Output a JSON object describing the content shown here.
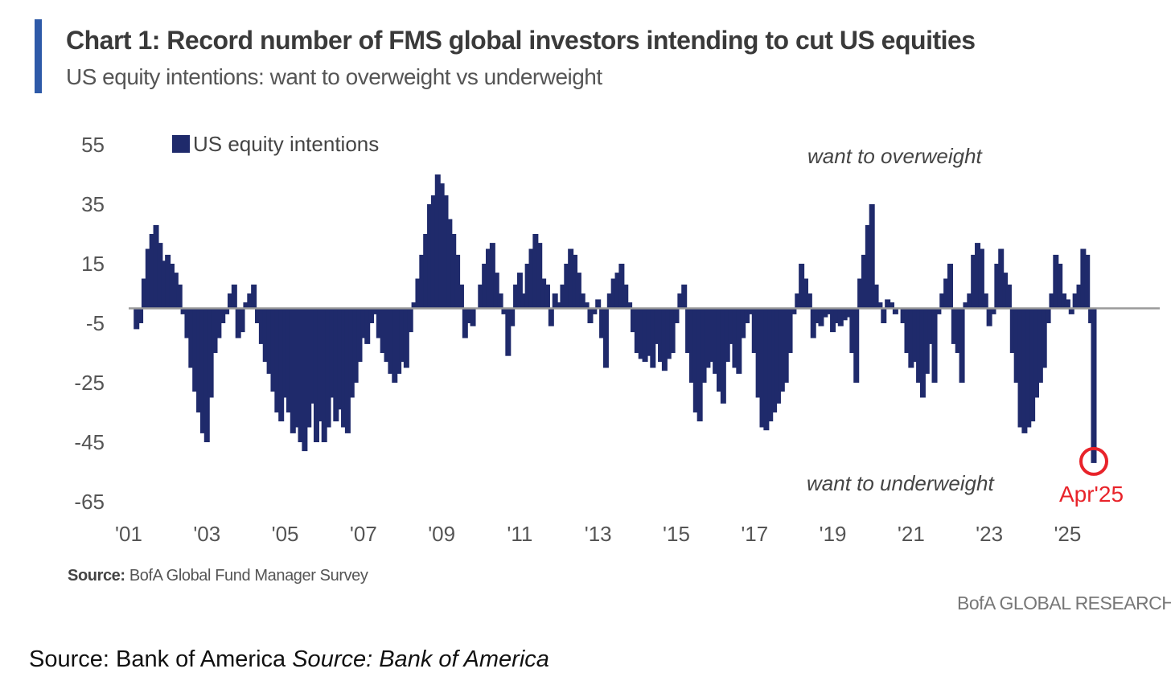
{
  "colors": {
    "bar": "#1f2a6b",
    "accent": "#2e5aa8",
    "highlight": "#e8232a",
    "zero_line": "#9a9a9a"
  },
  "header": {
    "title": "Chart 1: Record number of FMS global investors intending to cut US equities",
    "subtitle": "US equity intentions: want to overweight vs underweight"
  },
  "footer": {
    "source_label": "Source:",
    "source_text": "BofA Global Fund Manager Survey",
    "brand": "BofA GLOBAL RESEARCH",
    "outer_source_plain": "Source: Bank of America",
    "outer_source_italic": "Source: Bank of America"
  },
  "chart_data": {
    "type": "bar",
    "title": "Chart 1: Record number of FMS global investors intending to cut US equities",
    "subtitle": "US equity intentions: want to overweight vs underweight",
    "legend": {
      "label": "US equity intentions",
      "placement": "top-left"
    },
    "annotations": {
      "top": "want to overweight",
      "bottom": "want to underweight",
      "highlight_label": "Apr'25"
    },
    "ylim": [
      -65,
      55
    ],
    "yticks": [
      55,
      35,
      15,
      -5,
      -25,
      -45,
      -65
    ],
    "xlim": [
      2001,
      2025.67
    ],
    "xticks": [
      {
        "value": 2001,
        "label": "'01"
      },
      {
        "value": 2003,
        "label": "'03"
      },
      {
        "value": 2005,
        "label": "'05"
      },
      {
        "value": 2007,
        "label": "'07"
      },
      {
        "value": 2009,
        "label": "'09"
      },
      {
        "value": 2011,
        "label": "'11"
      },
      {
        "value": 2013,
        "label": "'13"
      },
      {
        "value": 2015,
        "label": "'15"
      },
      {
        "value": 2017,
        "label": "'17"
      },
      {
        "value": 2019,
        "label": "'19"
      },
      {
        "value": 2021,
        "label": "'21"
      },
      {
        "value": 2023,
        "label": "'23"
      },
      {
        "value": 2025,
        "label": "'25"
      }
    ],
    "grid": false,
    "series": [
      {
        "name": "US equity intentions",
        "points": [
          [
            2001.2,
            -7
          ],
          [
            2001.3,
            -5
          ],
          [
            2001.4,
            10
          ],
          [
            2001.5,
            20
          ],
          [
            2001.6,
            25
          ],
          [
            2001.7,
            28
          ],
          [
            2001.8,
            22
          ],
          [
            2001.9,
            16
          ],
          [
            2002.0,
            18
          ],
          [
            2002.1,
            15
          ],
          [
            2002.2,
            12
          ],
          [
            2002.3,
            8
          ],
          [
            2002.4,
            -2
          ],
          [
            2002.5,
            -10
          ],
          [
            2002.6,
            -20
          ],
          [
            2002.7,
            -28
          ],
          [
            2002.8,
            -35
          ],
          [
            2002.9,
            -42
          ],
          [
            2003.0,
            -45
          ],
          [
            2003.1,
            -30
          ],
          [
            2003.2,
            -15
          ],
          [
            2003.3,
            -10
          ],
          [
            2003.4,
            -5
          ],
          [
            2003.5,
            -2
          ],
          [
            2003.6,
            5
          ],
          [
            2003.7,
            8
          ],
          [
            2003.8,
            -10
          ],
          [
            2003.9,
            -8
          ],
          [
            2004.0,
            2
          ],
          [
            2004.1,
            5
          ],
          [
            2004.2,
            8
          ],
          [
            2004.3,
            -5
          ],
          [
            2004.4,
            -12
          ],
          [
            2004.5,
            -18
          ],
          [
            2004.6,
            -22
          ],
          [
            2004.7,
            -28
          ],
          [
            2004.8,
            -35
          ],
          [
            2004.9,
            -38
          ],
          [
            2005.0,
            -30
          ],
          [
            2005.1,
            -35
          ],
          [
            2005.2,
            -42
          ],
          [
            2005.3,
            -40
          ],
          [
            2005.4,
            -45
          ],
          [
            2005.5,
            -48
          ],
          [
            2005.6,
            -40
          ],
          [
            2005.7,
            -32
          ],
          [
            2005.8,
            -45
          ],
          [
            2005.9,
            -38
          ],
          [
            2006.0,
            -45
          ],
          [
            2006.1,
            -40
          ],
          [
            2006.2,
            -30
          ],
          [
            2006.3,
            -38
          ],
          [
            2006.4,
            -34
          ],
          [
            2006.5,
            -40
          ],
          [
            2006.6,
            -42
          ],
          [
            2006.7,
            -30
          ],
          [
            2006.8,
            -25
          ],
          [
            2006.9,
            -18
          ],
          [
            2007.0,
            -10
          ],
          [
            2007.1,
            -12
          ],
          [
            2007.2,
            -5
          ],
          [
            2007.3,
            -2
          ],
          [
            2007.4,
            -10
          ],
          [
            2007.5,
            -15
          ],
          [
            2007.6,
            -18
          ],
          [
            2007.7,
            -22
          ],
          [
            2007.8,
            -25
          ],
          [
            2007.9,
            -22
          ],
          [
            2008.0,
            -18
          ],
          [
            2008.1,
            -20
          ],
          [
            2008.2,
            -8
          ],
          [
            2008.3,
            2
          ],
          [
            2008.4,
            10
          ],
          [
            2008.5,
            18
          ],
          [
            2008.6,
            25
          ],
          [
            2008.7,
            35
          ],
          [
            2008.8,
            38
          ],
          [
            2008.9,
            45
          ],
          [
            2009.0,
            42
          ],
          [
            2009.1,
            38
          ],
          [
            2009.2,
            30
          ],
          [
            2009.3,
            25
          ],
          [
            2009.4,
            18
          ],
          [
            2009.5,
            8
          ],
          [
            2009.6,
            -10
          ],
          [
            2009.7,
            -5
          ],
          [
            2009.8,
            -6
          ],
          [
            2009.9,
            0
          ],
          [
            2010.0,
            8
          ],
          [
            2010.1,
            15
          ],
          [
            2010.2,
            20
          ],
          [
            2010.3,
            22
          ],
          [
            2010.4,
            12
          ],
          [
            2010.5,
            5
          ],
          [
            2010.6,
            -2
          ],
          [
            2010.7,
            -16
          ],
          [
            2010.8,
            -6
          ],
          [
            2010.9,
            8
          ],
          [
            2011.0,
            12
          ],
          [
            2011.1,
            5
          ],
          [
            2011.2,
            15
          ],
          [
            2011.3,
            20
          ],
          [
            2011.4,
            25
          ],
          [
            2011.5,
            22
          ],
          [
            2011.6,
            10
          ],
          [
            2011.7,
            8
          ],
          [
            2011.8,
            -6
          ],
          [
            2011.9,
            5
          ],
          [
            2012.0,
            2
          ],
          [
            2012.1,
            8
          ],
          [
            2012.2,
            15
          ],
          [
            2012.3,
            20
          ],
          [
            2012.4,
            18
          ],
          [
            2012.5,
            12
          ],
          [
            2012.6,
            5
          ],
          [
            2012.7,
            2
          ],
          [
            2012.8,
            -5
          ],
          [
            2012.9,
            -2
          ],
          [
            2013.0,
            3
          ],
          [
            2013.1,
            -10
          ],
          [
            2013.2,
            -20
          ],
          [
            2013.3,
            5
          ],
          [
            2013.4,
            10
          ],
          [
            2013.5,
            12
          ],
          [
            2013.6,
            15
          ],
          [
            2013.7,
            8
          ],
          [
            2013.8,
            2
          ],
          [
            2013.9,
            -8
          ],
          [
            2014.0,
            -15
          ],
          [
            2014.1,
            -17
          ],
          [
            2014.2,
            -18
          ],
          [
            2014.3,
            -16
          ],
          [
            2014.4,
            -20
          ],
          [
            2014.5,
            -12
          ],
          [
            2014.6,
            -18
          ],
          [
            2014.7,
            -21
          ],
          [
            2014.8,
            -17
          ],
          [
            2014.9,
            -15
          ],
          [
            2015.0,
            -5
          ],
          [
            2015.1,
            5
          ],
          [
            2015.2,
            8
          ],
          [
            2015.3,
            -15
          ],
          [
            2015.4,
            -25
          ],
          [
            2015.5,
            -35
          ],
          [
            2015.6,
            -38
          ],
          [
            2015.7,
            -25
          ],
          [
            2015.8,
            -20
          ],
          [
            2015.9,
            -18
          ],
          [
            2016.0,
            -22
          ],
          [
            2016.1,
            -28
          ],
          [
            2016.2,
            -32
          ],
          [
            2016.3,
            -18
          ],
          [
            2016.4,
            -12
          ],
          [
            2016.5,
            -20
          ],
          [
            2016.6,
            -22
          ],
          [
            2016.7,
            -10
          ],
          [
            2016.8,
            -5
          ],
          [
            2016.9,
            -2
          ],
          [
            2017.0,
            -15
          ],
          [
            2017.1,
            -30
          ],
          [
            2017.2,
            -40
          ],
          [
            2017.3,
            -41
          ],
          [
            2017.4,
            -38
          ],
          [
            2017.5,
            -35
          ],
          [
            2017.6,
            -32
          ],
          [
            2017.7,
            -28
          ],
          [
            2017.8,
            -25
          ],
          [
            2017.9,
            -15
          ],
          [
            2018.0,
            -2
          ],
          [
            2018.1,
            5
          ],
          [
            2018.2,
            15
          ],
          [
            2018.3,
            10
          ],
          [
            2018.4,
            5
          ],
          [
            2018.5,
            -10
          ],
          [
            2018.6,
            -5
          ],
          [
            2018.7,
            -6
          ],
          [
            2018.8,
            -3
          ],
          [
            2018.9,
            -2
          ],
          [
            2019.0,
            -8
          ],
          [
            2019.1,
            -5
          ],
          [
            2019.2,
            -6
          ],
          [
            2019.3,
            -4
          ],
          [
            2019.4,
            -3
          ],
          [
            2019.5,
            -15
          ],
          [
            2019.6,
            -25
          ],
          [
            2019.7,
            10
          ],
          [
            2019.8,
            18
          ],
          [
            2019.9,
            28
          ],
          [
            2020.0,
            35
          ],
          [
            2020.1,
            8
          ],
          [
            2020.2,
            2
          ],
          [
            2020.3,
            -5
          ],
          [
            2020.4,
            3
          ],
          [
            2020.5,
            2
          ],
          [
            2020.6,
            -2
          ],
          [
            2020.7,
            0
          ],
          [
            2020.8,
            -5
          ],
          [
            2020.9,
            -15
          ],
          [
            2021.0,
            -20
          ],
          [
            2021.1,
            -18
          ],
          [
            2021.2,
            -25
          ],
          [
            2021.3,
            -30
          ],
          [
            2021.4,
            -22
          ],
          [
            2021.5,
            -12
          ],
          [
            2021.6,
            -25
          ],
          [
            2021.7,
            -2
          ],
          [
            2021.8,
            5
          ],
          [
            2021.9,
            10
          ],
          [
            2022.0,
            15
          ],
          [
            2022.1,
            -12
          ],
          [
            2022.2,
            -15
          ],
          [
            2022.3,
            -25
          ],
          [
            2022.4,
            2
          ],
          [
            2022.5,
            5
          ],
          [
            2022.6,
            18
          ],
          [
            2022.7,
            22
          ],
          [
            2022.8,
            20
          ],
          [
            2022.9,
            5
          ],
          [
            2023.0,
            -6
          ],
          [
            2023.1,
            -2
          ],
          [
            2023.2,
            15
          ],
          [
            2023.3,
            20
          ],
          [
            2023.4,
            12
          ],
          [
            2023.5,
            8
          ],
          [
            2023.6,
            -15
          ],
          [
            2023.7,
            -25
          ],
          [
            2023.8,
            -40
          ],
          [
            2023.9,
            -42
          ],
          [
            2024.0,
            -40
          ],
          [
            2024.1,
            -38
          ],
          [
            2024.2,
            -30
          ],
          [
            2024.3,
            -25
          ],
          [
            2024.4,
            -20
          ],
          [
            2024.5,
            -5
          ],
          [
            2024.6,
            5
          ],
          [
            2024.7,
            18
          ],
          [
            2024.8,
            15
          ],
          [
            2024.9,
            5
          ],
          [
            2025.0,
            3
          ],
          [
            2025.1,
            -2
          ],
          [
            2025.2,
            5
          ],
          [
            2025.3,
            8
          ],
          [
            2025.4,
            20
          ],
          [
            2025.5,
            18
          ],
          [
            2025.6,
            -5
          ],
          [
            2025.67,
            -52
          ]
        ]
      }
    ]
  }
}
